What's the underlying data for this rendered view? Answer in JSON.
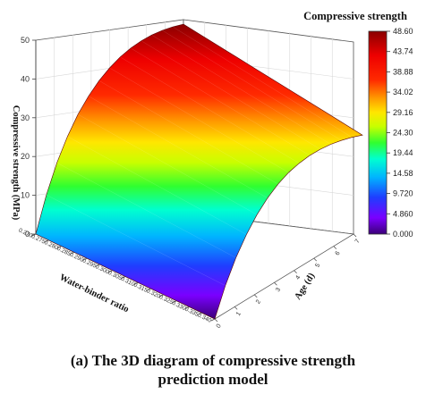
{
  "caption": {
    "line1": "(a) The 3D diagram of compressive strength",
    "line2": "prediction model"
  },
  "chart_data": {
    "type": "surface3d",
    "zlabel": "Compressive strength (MPa)",
    "xlabel": "Water-binder ratio",
    "ylabel": "Age (d)",
    "z_ticks": [
      "0",
      "10",
      "20",
      "30",
      "40",
      "50"
    ],
    "x_ticks": [
      "0.270",
      "0.275",
      "0.280",
      "0.285",
      "0.290",
      "0.295",
      "0.300",
      "0.305",
      "0.310",
      "0.315",
      "0.320",
      "0.325",
      "0.330",
      "0.335",
      "0.340"
    ],
    "y_ticks": [
      "0",
      "1",
      "2",
      "3",
      "4",
      "5",
      "6",
      "7"
    ],
    "zlim": [
      0,
      50
    ],
    "surface_profile_age": [
      0,
      0.5,
      1,
      1.5,
      2,
      2.5,
      3,
      3.5,
      4,
      4.5,
      5,
      5.5,
      6,
      6.5,
      7
    ],
    "surface_profile_strength_low_wb": [
      0,
      9.7,
      17.6,
      24,
      29.3,
      33.6,
      37.2,
      40.1,
      42.5,
      44.4,
      45.9,
      47,
      47.8,
      48.3,
      48.6
    ],
    "surface_profile_strength_high_wb": [
      0,
      8.2,
      15,
      20.6,
      25.3,
      29.2,
      32.4,
      35,
      37,
      38.6,
      39.8,
      40.7,
      41.3,
      41.7,
      41.9
    ],
    "colorbar": {
      "title": "Compressive strength",
      "ticks": [
        "0.000",
        "4.860",
        "9.720",
        "14.58",
        "19.44",
        "24.30",
        "29.16",
        "34.02",
        "38.88",
        "43.74",
        "48.60"
      ],
      "range": [
        0,
        48.6
      ]
    },
    "grid": true
  }
}
